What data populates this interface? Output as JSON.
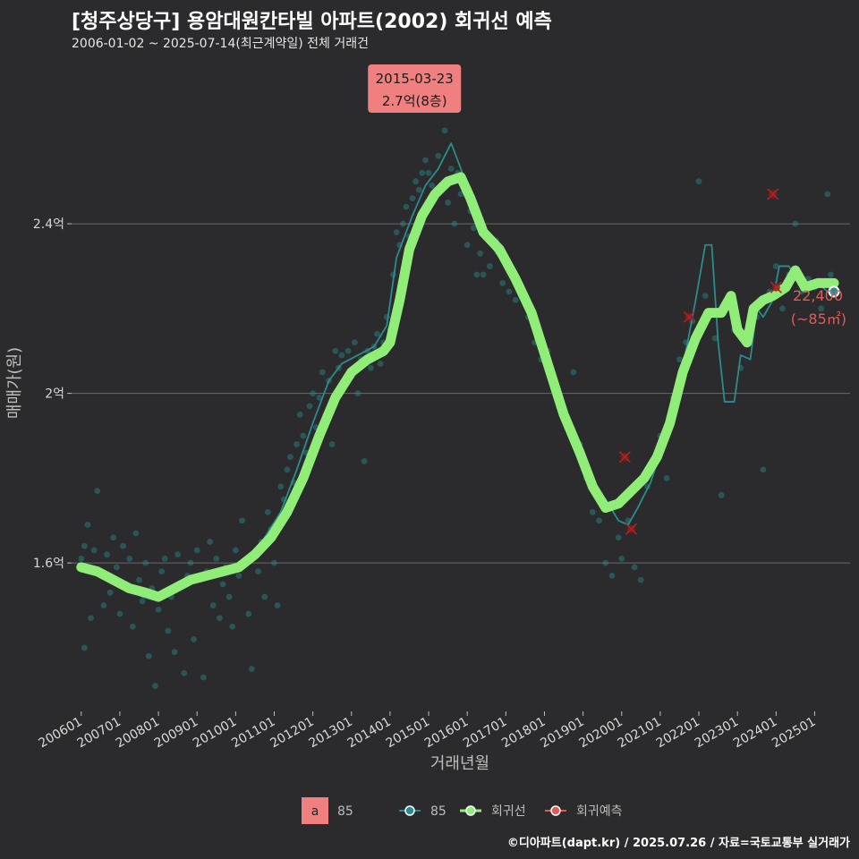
{
  "header": {
    "title": "[청주상당구] 용암대원칸타빌 아파트(2002) 회귀선 예측",
    "subtitle": "2006-01-02 ~ 2025-07-14(최근계약일) 전체 거래건"
  },
  "footer": {
    "credit": "©디아파트(dapt.kr) / 2025.07.26 / 자료=국토교통부 실거래가"
  },
  "colors": {
    "background": "#2b2b2d",
    "grid": "#6a6a6a",
    "series_85": "#2a8c8c",
    "regression": "#90ee78",
    "forecast": "#e15b5b",
    "callout_bg": "#f08080"
  },
  "chart_data": {
    "type": "line",
    "xlabel": "거래년월",
    "ylabel": "매매가(원)",
    "x_range": [
      "2005-10",
      "2025-12"
    ],
    "ylim": [
      1.25,
      2.78
    ],
    "y_ticks": [
      {
        "value": 1.6,
        "label": "1.6억"
      },
      {
        "value": 2.0,
        "label": "2억"
      },
      {
        "value": 2.4,
        "label": "2.4억"
      }
    ],
    "x_ticks": [
      "200601",
      "200701",
      "200801",
      "200901",
      "201001",
      "201101",
      "201201",
      "201301",
      "201401",
      "201501",
      "201601",
      "201701",
      "201801",
      "201901",
      "202001",
      "202101",
      "202201",
      "202301",
      "202401",
      "202501"
    ],
    "grid": true,
    "legend_position": "bottom",
    "legend": {
      "label_box": "a",
      "label_box_text": "85",
      "items": [
        "85",
        "회귀선",
        "회귀예측"
      ]
    },
    "annotation_max": {
      "date": "2015-03-23",
      "line1": "2015-03-23",
      "line2": "2.7억(8층)",
      "value": 2.7
    },
    "annotation_last": {
      "line1": "22,400",
      "line2": "(~85㎡)",
      "value": 2.24,
      "date": "2025-07"
    },
    "series": [
      {
        "name": "85",
        "style": "thin-line",
        "points": [
          [
            "2006-01",
            1.59
          ],
          [
            "2006-06",
            1.57
          ],
          [
            "2006-10",
            1.56
          ],
          [
            "2007-03",
            1.54
          ],
          [
            "2007-08",
            1.52
          ],
          [
            "2008-01",
            1.51
          ],
          [
            "2008-06",
            1.54
          ],
          [
            "2008-12",
            1.56
          ],
          [
            "2009-06",
            1.58
          ],
          [
            "2009-12",
            1.59
          ],
          [
            "2010-06",
            1.61
          ],
          [
            "2010-10",
            1.66
          ],
          [
            "2011-03",
            1.72
          ],
          [
            "2011-08",
            1.82
          ],
          [
            "2012-01",
            1.93
          ],
          [
            "2012-06",
            2.03
          ],
          [
            "2012-10",
            2.07
          ],
          [
            "2013-03",
            2.09
          ],
          [
            "2013-08",
            2.11
          ],
          [
            "2013-12",
            2.16
          ],
          [
            "2014-03",
            2.32
          ],
          [
            "2014-08",
            2.42
          ],
          [
            "2014-12",
            2.49
          ],
          [
            "2015-04",
            2.53
          ],
          [
            "2015-08",
            2.59
          ],
          [
            "2015-11",
            2.53
          ],
          [
            "2016-03",
            2.44
          ],
          [
            "2016-06",
            2.38
          ],
          [
            "2016-10",
            2.33
          ],
          [
            "2017-03",
            2.29
          ],
          [
            "2017-08",
            2.22
          ],
          [
            "2017-12",
            2.1
          ],
          [
            "2018-06",
            1.98
          ],
          [
            "2018-12",
            1.86
          ],
          [
            "2019-04",
            1.79
          ],
          [
            "2019-08",
            1.75
          ],
          [
            "2019-12",
            1.7
          ],
          [
            "2020-03",
            1.69
          ],
          [
            "2020-06",
            1.73
          ],
          [
            "2020-10",
            1.79
          ],
          [
            "2021-01",
            1.86
          ],
          [
            "2021-05",
            1.95
          ],
          [
            "2021-09",
            2.1
          ],
          [
            "2021-12",
            2.22
          ],
          [
            "2022-03",
            2.35
          ],
          [
            "2022-05",
            2.35
          ],
          [
            "2022-07",
            2.12
          ],
          [
            "2022-09",
            1.98
          ],
          [
            "2022-12",
            1.98
          ],
          [
            "2023-02",
            2.09
          ],
          [
            "2023-05",
            2.08
          ],
          [
            "2023-07",
            2.2
          ],
          [
            "2023-09",
            2.18
          ],
          [
            "2023-12",
            2.22
          ],
          [
            "2024-02",
            2.3
          ],
          [
            "2024-05",
            2.3
          ],
          [
            "2024-08",
            2.26
          ],
          [
            "2024-11",
            2.25
          ],
          [
            "2025-02",
            2.26
          ],
          [
            "2025-05",
            2.24
          ],
          [
            "2025-07",
            2.24
          ]
        ]
      },
      {
        "name": "회귀선",
        "style": "thick-line",
        "points": [
          [
            "2006-01",
            1.59
          ],
          [
            "2006-06",
            1.58
          ],
          [
            "2006-11",
            1.56
          ],
          [
            "2007-04",
            1.54
          ],
          [
            "2007-09",
            1.53
          ],
          [
            "2008-01",
            1.52
          ],
          [
            "2008-06",
            1.54
          ],
          [
            "2008-11",
            1.56
          ],
          [
            "2009-04",
            1.57
          ],
          [
            "2009-09",
            1.58
          ],
          [
            "2010-02",
            1.59
          ],
          [
            "2010-07",
            1.62
          ],
          [
            "2010-12",
            1.66
          ],
          [
            "2011-05",
            1.72
          ],
          [
            "2011-10",
            1.8
          ],
          [
            "2012-03",
            1.9
          ],
          [
            "2012-08",
            1.99
          ],
          [
            "2013-01",
            2.05
          ],
          [
            "2013-06",
            2.08
          ],
          [
            "2013-11",
            2.1
          ],
          [
            "2014-01",
            2.12
          ],
          [
            "2014-04",
            2.22
          ],
          [
            "2014-07",
            2.34
          ],
          [
            "2014-11",
            2.42
          ],
          [
            "2015-03",
            2.47
          ],
          [
            "2015-07",
            2.5
          ],
          [
            "2015-11",
            2.51
          ],
          [
            "2016-02",
            2.46
          ],
          [
            "2016-06",
            2.38
          ],
          [
            "2016-11",
            2.34
          ],
          [
            "2017-04",
            2.27
          ],
          [
            "2017-09",
            2.19
          ],
          [
            "2018-02",
            2.07
          ],
          [
            "2018-07",
            1.95
          ],
          [
            "2018-12",
            1.86
          ],
          [
            "2019-04",
            1.78
          ],
          [
            "2019-08",
            1.73
          ],
          [
            "2019-12",
            1.74
          ],
          [
            "2020-04",
            1.77
          ],
          [
            "2020-08",
            1.8
          ],
          [
            "2020-12",
            1.85
          ],
          [
            "2021-04",
            1.93
          ],
          [
            "2021-08",
            2.05
          ],
          [
            "2021-12",
            2.13
          ],
          [
            "2022-04",
            2.19
          ],
          [
            "2022-08",
            2.19
          ],
          [
            "2022-11",
            2.23
          ],
          [
            "2023-01",
            2.15
          ],
          [
            "2023-04",
            2.12
          ],
          [
            "2023-06",
            2.2
          ],
          [
            "2023-09",
            2.22
          ],
          [
            "2023-12",
            2.23
          ],
          [
            "2024-04",
            2.25
          ],
          [
            "2024-07",
            2.29
          ],
          [
            "2024-10",
            2.25
          ],
          [
            "2025-02",
            2.26
          ],
          [
            "2025-07",
            2.26
          ]
        ]
      },
      {
        "name": "회귀예측",
        "style": "x-markers",
        "points": [
          [
            "2020-02",
            1.85
          ],
          [
            "2020-04",
            1.68
          ],
          [
            "2021-10",
            2.18
          ],
          [
            "2023-12",
            2.47
          ],
          [
            "2024-01",
            2.25
          ]
        ]
      }
    ],
    "scatter_85": [
      [
        "2006-01",
        1.61
      ],
      [
        "2006-02",
        1.64
      ],
      [
        "2006-02",
        1.4
      ],
      [
        "2006-03",
        1.69
      ],
      [
        "2006-04",
        1.47
      ],
      [
        "2006-05",
        1.63
      ],
      [
        "2006-06",
        1.77
      ],
      [
        "2006-07",
        1.58
      ],
      [
        "2006-08",
        1.5
      ],
      [
        "2006-09",
        1.62
      ],
      [
        "2006-10",
        1.53
      ],
      [
        "2006-11",
        1.66
      ],
      [
        "2006-12",
        1.59
      ],
      [
        "2007-01",
        1.48
      ],
      [
        "2007-02",
        1.64
      ],
      [
        "2007-03",
        1.55
      ],
      [
        "2007-04",
        1.61
      ],
      [
        "2007-05",
        1.45
      ],
      [
        "2007-06",
        1.67
      ],
      [
        "2007-07",
        1.56
      ],
      [
        "2007-08",
        1.51
      ],
      [
        "2007-09",
        1.6
      ],
      [
        "2007-10",
        1.38
      ],
      [
        "2007-11",
        1.54
      ],
      [
        "2007-12",
        1.31
      ],
      [
        "2008-01",
        1.49
      ],
      [
        "2008-02",
        1.58
      ],
      [
        "2008-03",
        1.61
      ],
      [
        "2008-04",
        1.44
      ],
      [
        "2008-05",
        1.52
      ],
      [
        "2008-06",
        1.39
      ],
      [
        "2008-07",
        1.62
      ],
      [
        "2008-08",
        1.55
      ],
      [
        "2008-09",
        1.34
      ],
      [
        "2008-10",
        1.57
      ],
      [
        "2008-11",
        1.6
      ],
      [
        "2008-12",
        1.42
      ],
      [
        "2009-01",
        1.63
      ],
      [
        "2009-02",
        1.56
      ],
      [
        "2009-03",
        1.33
      ],
      [
        "2009-04",
        1.58
      ],
      [
        "2009-05",
        1.65
      ],
      [
        "2009-06",
        1.5
      ],
      [
        "2009-07",
        1.61
      ],
      [
        "2009-08",
        1.47
      ],
      [
        "2009-09",
        1.55
      ],
      [
        "2009-10",
        1.59
      ],
      [
        "2009-11",
        1.52
      ],
      [
        "2009-12",
        1.45
      ],
      [
        "2010-01",
        1.63
      ],
      [
        "2010-02",
        1.57
      ],
      [
        "2010-03",
        1.7
      ],
      [
        "2010-04",
        1.6
      ],
      [
        "2010-05",
        1.48
      ],
      [
        "2010-06",
        1.35
      ],
      [
        "2010-07",
        1.62
      ],
      [
        "2010-08",
        1.58
      ],
      [
        "2010-09",
        1.65
      ],
      [
        "2010-10",
        1.52
      ],
      [
        "2010-11",
        1.72
      ],
      [
        "2010-12",
        1.68
      ],
      [
        "2011-01",
        1.6
      ],
      [
        "2011-02",
        1.5
      ],
      [
        "2011-03",
        1.78
      ],
      [
        "2011-04",
        1.75
      ],
      [
        "2011-05",
        1.82
      ],
      [
        "2011-06",
        1.85
      ],
      [
        "2011-07",
        1.79
      ],
      [
        "2011-08",
        1.88
      ],
      [
        "2011-09",
        1.95
      ],
      [
        "2011-10",
        1.9
      ],
      [
        "2011-11",
        1.86
      ],
      [
        "2011-12",
        1.97
      ],
      [
        "2012-01",
        2.0
      ],
      [
        "2012-02",
        1.92
      ],
      [
        "2012-03",
        1.99
      ],
      [
        "2012-04",
        2.05
      ],
      [
        "2012-05",
        1.95
      ],
      [
        "2012-06",
        2.03
      ],
      [
        "2012-07",
        1.88
      ],
      [
        "2012-08",
        2.1
      ],
      [
        "2012-09",
        2.06
      ],
      [
        "2012-10",
        2.09
      ],
      [
        "2012-11",
        2.03
      ],
      [
        "2012-12",
        2.1
      ],
      [
        "2013-01",
        2.04
      ],
      [
        "2013-02",
        2.12
      ],
      [
        "2013-03",
        2.0
      ],
      [
        "2013-04",
        2.08
      ],
      [
        "2013-05",
        1.84
      ],
      [
        "2013-06",
        2.1
      ],
      [
        "2013-07",
        2.06
      ],
      [
        "2013-08",
        2.11
      ],
      [
        "2013-09",
        2.14
      ],
      [
        "2013-10",
        2.07
      ],
      [
        "2013-11",
        2.12
      ],
      [
        "2013-12",
        2.18
      ],
      [
        "2014-01",
        2.15
      ],
      [
        "2014-02",
        2.28
      ],
      [
        "2014-03",
        2.38
      ],
      [
        "2014-04",
        2.35
      ],
      [
        "2014-05",
        2.4
      ],
      [
        "2014-06",
        2.44
      ],
      [
        "2014-07",
        2.37
      ],
      [
        "2014-08",
        2.46
      ],
      [
        "2014-09",
        2.5
      ],
      [
        "2014-10",
        2.48
      ],
      [
        "2014-11",
        2.52
      ],
      [
        "2014-12",
        2.55
      ],
      [
        "2015-01",
        2.52
      ],
      [
        "2015-02",
        2.49
      ],
      [
        "2015-03",
        2.7
      ],
      [
        "2015-04",
        2.56
      ],
      [
        "2015-05",
        2.48
      ],
      [
        "2015-06",
        2.62
      ],
      [
        "2015-07",
        2.45
      ],
      [
        "2015-08",
        2.53
      ],
      [
        "2015-09",
        2.4
      ],
      [
        "2015-10",
        2.52
      ],
      [
        "2015-11",
        2.47
      ],
      [
        "2016-01",
        2.35
      ],
      [
        "2016-02",
        2.43
      ],
      [
        "2016-03",
        2.39
      ],
      [
        "2016-04",
        2.28
      ],
      [
        "2016-05",
        2.33
      ],
      [
        "2016-06",
        2.28
      ],
      [
        "2016-08",
        2.3
      ],
      [
        "2016-10",
        2.36
      ],
      [
        "2016-12",
        2.26
      ],
      [
        "2017-02",
        2.24
      ],
      [
        "2017-04",
        2.22
      ],
      [
        "2017-06",
        2.25
      ],
      [
        "2017-08",
        2.18
      ],
      [
        "2017-10",
        2.12
      ],
      [
        "2017-12",
        2.08
      ],
      [
        "2018-02",
        2.1
      ],
      [
        "2018-04",
        2.02
      ],
      [
        "2018-06",
        1.97
      ],
      [
        "2018-08",
        1.93
      ],
      [
        "2018-10",
        2.05
      ],
      [
        "2018-12",
        1.88
      ],
      [
        "2019-02",
        1.8
      ],
      [
        "2019-04",
        1.72
      ],
      [
        "2019-06",
        1.7
      ],
      [
        "2019-08",
        1.6
      ],
      [
        "2019-10",
        1.57
      ],
      [
        "2019-12",
        1.66
      ],
      [
        "2020-01",
        1.61
      ],
      [
        "2020-03",
        1.7
      ],
      [
        "2020-05",
        1.59
      ],
      [
        "2020-07",
        1.56
      ],
      [
        "2020-09",
        1.78
      ],
      [
        "2020-11",
        1.83
      ],
      [
        "2021-01",
        1.9
      ],
      [
        "2021-03",
        1.8
      ],
      [
        "2021-05",
        1.99
      ],
      [
        "2021-07",
        2.08
      ],
      [
        "2021-09",
        2.12
      ],
      [
        "2021-11",
        2.17
      ],
      [
        "2022-01",
        2.5
      ],
      [
        "2022-03",
        2.23
      ],
      [
        "2022-06",
        2.13
      ],
      [
        "2022-08",
        1.76
      ],
      [
        "2022-10",
        2.21
      ],
      [
        "2022-12",
        2.15
      ],
      [
        "2023-02",
        2.06
      ],
      [
        "2023-05",
        2.15
      ],
      [
        "2023-07",
        2.18
      ],
      [
        "2023-09",
        1.82
      ],
      [
        "2023-11",
        2.24
      ],
      [
        "2024-01",
        2.3
      ],
      [
        "2024-03",
        2.2
      ],
      [
        "2024-05",
        2.28
      ],
      [
        "2024-07",
        2.4
      ],
      [
        "2024-09",
        2.24
      ],
      [
        "2024-11",
        2.27
      ],
      [
        "2025-01",
        2.25
      ],
      [
        "2025-03",
        2.2
      ],
      [
        "2025-05",
        2.47
      ],
      [
        "2025-06",
        2.28
      ]
    ]
  }
}
